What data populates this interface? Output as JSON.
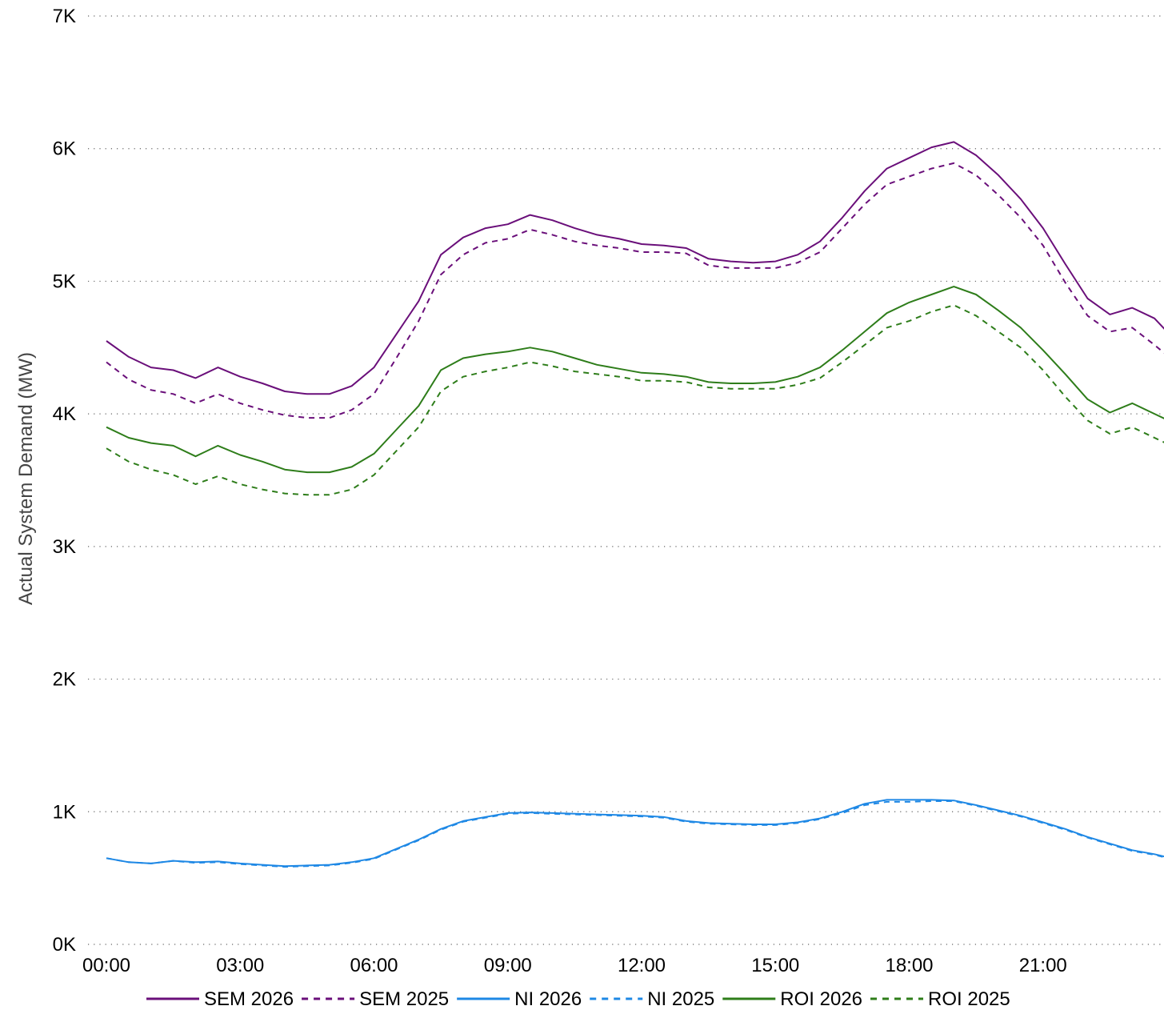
{
  "chart_data": {
    "type": "line",
    "title": "",
    "xlabel": "",
    "ylabel": "Actual System Demand (MW)",
    "ylim": [
      0,
      7000
    ],
    "yticks": [
      "0K",
      "1K",
      "2K",
      "3K",
      "4K",
      "5K",
      "6K",
      "7K"
    ],
    "xticks": [
      "00:00",
      "03:00",
      "06:00",
      "09:00",
      "12:00",
      "15:00",
      "18:00",
      "21:00"
    ],
    "grid": "horizontal-dotted",
    "legend_position": "bottom",
    "x": [
      "00:00",
      "00:30",
      "01:00",
      "01:30",
      "02:00",
      "02:30",
      "03:00",
      "03:30",
      "04:00",
      "04:30",
      "05:00",
      "05:30",
      "06:00",
      "06:30",
      "07:00",
      "07:30",
      "08:00",
      "08:30",
      "09:00",
      "09:30",
      "10:00",
      "10:30",
      "11:00",
      "11:30",
      "12:00",
      "12:30",
      "13:00",
      "13:30",
      "14:00",
      "14:30",
      "15:00",
      "15:30",
      "16:00",
      "16:30",
      "17:00",
      "17:30",
      "18:00",
      "18:30",
      "19:00",
      "19:30",
      "20:00",
      "20:30",
      "21:00",
      "21:30",
      "22:00",
      "22:30",
      "23:00",
      "23:30",
      "23:45"
    ],
    "series": [
      {
        "name": "SEM 2026",
        "color": "#6a0f7a",
        "dash": "solid",
        "values": [
          4550,
          4430,
          4350,
          4330,
          4270,
          4350,
          4280,
          4230,
          4170,
          4150,
          4150,
          4210,
          4350,
          4600,
          4850,
          5200,
          5330,
          5400,
          5430,
          5500,
          5460,
          5400,
          5350,
          5320,
          5280,
          5270,
          5250,
          5170,
          5150,
          5140,
          5150,
          5200,
          5300,
          5480,
          5680,
          5850,
          5930,
          6010,
          6050,
          5950,
          5800,
          5620,
          5400,
          5130,
          4870,
          4750,
          4800,
          4720,
          4630
        ]
      },
      {
        "name": "SEM 2025",
        "color": "#6a0f7a",
        "dash": "dashed",
        "values": [
          4390,
          4260,
          4180,
          4150,
          4080,
          4150,
          4080,
          4030,
          3990,
          3970,
          3970,
          4030,
          4150,
          4420,
          4700,
          5050,
          5200,
          5290,
          5320,
          5390,
          5350,
          5300,
          5270,
          5250,
          5220,
          5220,
          5210,
          5120,
          5100,
          5100,
          5100,
          5140,
          5220,
          5400,
          5580,
          5730,
          5790,
          5850,
          5890,
          5800,
          5650,
          5480,
          5270,
          4990,
          4740,
          4620,
          4650,
          4520,
          4450
        ]
      },
      {
        "name": "NI 2026",
        "color": "#1e88e5",
        "dash": "solid",
        "values": [
          650,
          620,
          610,
          630,
          620,
          625,
          610,
          600,
          590,
          595,
          600,
          620,
          650,
          720,
          790,
          870,
          930,
          960,
          990,
          995,
          990,
          985,
          980,
          975,
          970,
          960,
          930,
          915,
          910,
          905,
          905,
          920,
          950,
          1000,
          1060,
          1090,
          1090,
          1090,
          1085,
          1050,
          1010,
          970,
          920,
          870,
          810,
          760,
          710,
          680,
          660
        ]
      },
      {
        "name": "NI 2025",
        "color": "#1e88e5",
        "dash": "dashed",
        "values": [
          650,
          620,
          610,
          630,
          615,
          620,
          605,
          595,
          585,
          590,
          595,
          615,
          645,
          715,
          785,
          865,
          925,
          955,
          985,
          990,
          985,
          980,
          975,
          970,
          965,
          955,
          925,
          910,
          905,
          900,
          900,
          915,
          945,
          990,
          1050,
          1075,
          1075,
          1080,
          1080,
          1045,
          1005,
          965,
          915,
          865,
          805,
          755,
          705,
          675,
          655
        ]
      },
      {
        "name": "ROI 2026",
        "color": "#2e7d1a",
        "dash": "solid",
        "values": [
          3900,
          3820,
          3780,
          3760,
          3680,
          3760,
          3690,
          3640,
          3580,
          3560,
          3560,
          3600,
          3700,
          3880,
          4060,
          4330,
          4420,
          4450,
          4470,
          4500,
          4470,
          4420,
          4370,
          4340,
          4310,
          4300,
          4280,
          4240,
          4230,
          4230,
          4240,
          4280,
          4350,
          4480,
          4620,
          4760,
          4840,
          4900,
          4960,
          4900,
          4780,
          4650,
          4480,
          4300,
          4110,
          4010,
          4080,
          4000,
          3960
        ]
      },
      {
        "name": "ROI 2025",
        "color": "#2e7d1a",
        "dash": "dashed",
        "values": [
          3740,
          3640,
          3580,
          3540,
          3470,
          3530,
          3470,
          3430,
          3400,
          3390,
          3390,
          3430,
          3540,
          3720,
          3900,
          4170,
          4280,
          4320,
          4350,
          4390,
          4360,
          4320,
          4300,
          4280,
          4250,
          4250,
          4240,
          4200,
          4190,
          4190,
          4190,
          4220,
          4270,
          4390,
          4520,
          4650,
          4700,
          4770,
          4820,
          4740,
          4620,
          4500,
          4330,
          4130,
          3950,
          3850,
          3900,
          3820,
          3780
        ]
      }
    ]
  }
}
